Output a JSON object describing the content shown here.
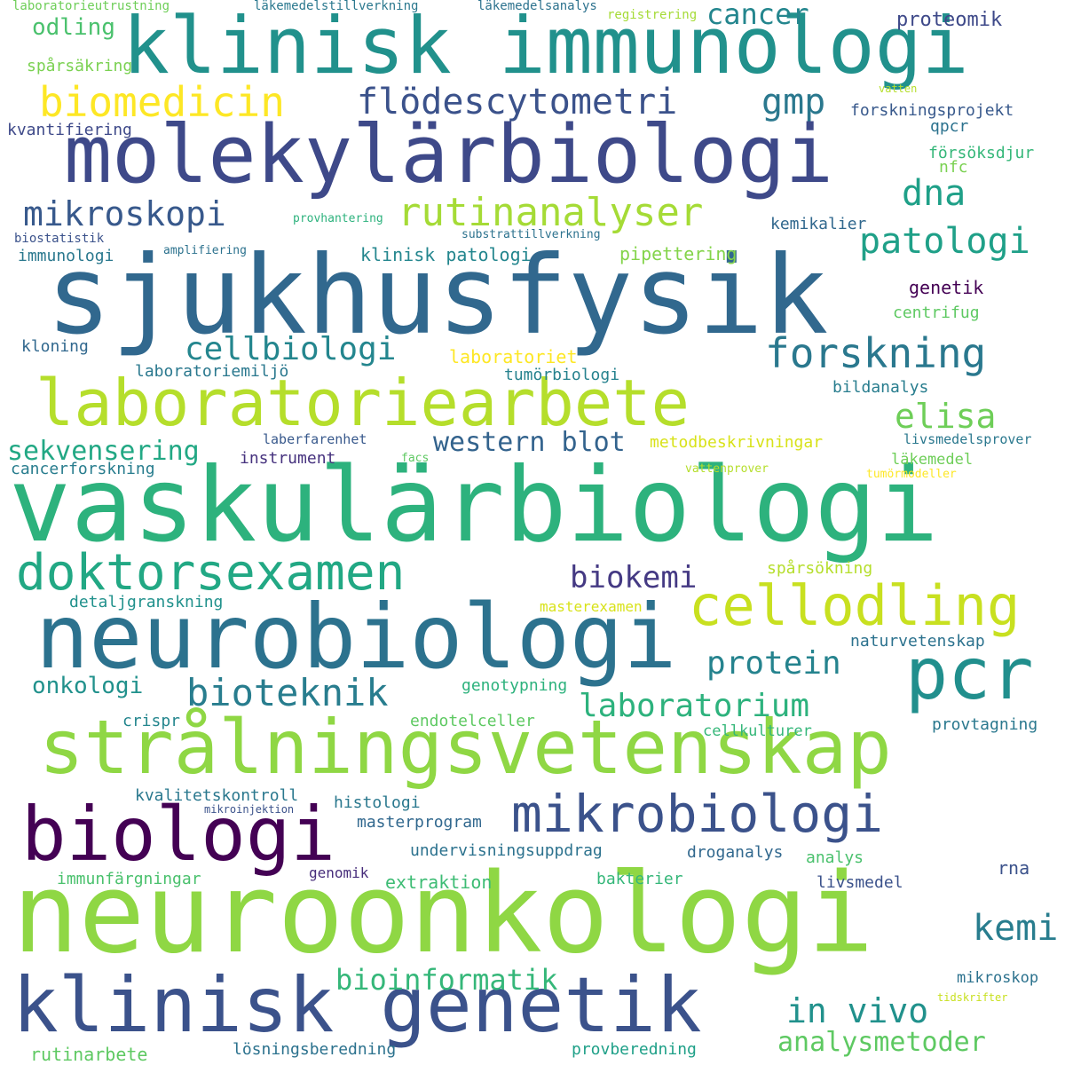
{
  "words": [
    {
      "text": "neuroonkologi",
      "color": "#8fd744"
    },
    {
      "text": "vaskulärbiologi",
      "color": "#2db27d"
    },
    {
      "text": "sjukhusfysik",
      "color": "#31688e"
    },
    {
      "text": "neurobiologi",
      "color": "#2c728e"
    },
    {
      "text": "molekylärbiologi",
      "color": "#3e4989"
    },
    {
      "text": "klinisk immunologi",
      "color": "#21918c"
    },
    {
      "text": "strålningsvetenskap",
      "color": "#8fd744"
    },
    {
      "text": "laboratoriearbete",
      "color": "#b5de2b"
    },
    {
      "text": "klinisk genetik",
      "color": "#3b528b"
    },
    {
      "text": "biologi",
      "color": "#440154"
    },
    {
      "text": "pcr",
      "color": "#218f8d"
    },
    {
      "text": "mikrobiologi",
      "color": "#3b528b"
    },
    {
      "text": "doktorsexamen",
      "color": "#22a884"
    },
    {
      "text": "cellodling",
      "color": "#c8e020"
    },
    {
      "text": "rutinanalyser",
      "color": "#a5db36"
    },
    {
      "text": "biomedicin",
      "color": "#fde725"
    },
    {
      "text": "flödescytometri",
      "color": "#3b528b"
    },
    {
      "text": "mikroskopi",
      "color": "#38598c"
    },
    {
      "text": "forskning",
      "color": "#2a788e"
    },
    {
      "text": "patologi",
      "color": "#1fa088"
    },
    {
      "text": "dna",
      "color": "#1fa088"
    },
    {
      "text": "gmp",
      "color": "#2a788e"
    },
    {
      "text": "cancer",
      "color": "#24868e"
    },
    {
      "text": "cellbiologi",
      "color": "#24868e"
    },
    {
      "text": "elisa",
      "color": "#6ece58"
    },
    {
      "text": "bioteknik",
      "color": "#287d8e"
    },
    {
      "text": "laboratorium",
      "color": "#2db27d"
    },
    {
      "text": "protein",
      "color": "#25838e"
    },
    {
      "text": "biokemi",
      "color": "#443983"
    },
    {
      "text": "western blot",
      "color": "#33638d"
    },
    {
      "text": "sekvensering",
      "color": "#22a884"
    },
    {
      "text": "in vivo",
      "color": "#21918c"
    },
    {
      "text": "analysmetoder",
      "color": "#5ec962"
    },
    {
      "text": "bioinformatik",
      "color": "#35b779"
    },
    {
      "text": "kemi",
      "color": "#287d8e"
    },
    {
      "text": "onkologi",
      "color": "#21918c"
    },
    {
      "text": "proteomik",
      "color": "#3e4989"
    },
    {
      "text": "odling",
      "color": "#4ac16d"
    },
    {
      "text": "laboratorieutrustning",
      "color": "#6ece58"
    },
    {
      "text": "läkemedelstillverkning",
      "color": "#2a788e"
    },
    {
      "text": "läkemedelsanalys",
      "color": "#2c728e"
    },
    {
      "text": "registrering",
      "color": "#a5db36"
    },
    {
      "text": "spårsäkring",
      "color": "#7ad151"
    },
    {
      "text": "vatten",
      "color": "#b5de2b"
    },
    {
      "text": "forskningsprojekt",
      "color": "#38598c"
    },
    {
      "text": "kvantifiering",
      "color": "#3e4989"
    },
    {
      "text": "qpcr",
      "color": "#2c728e"
    },
    {
      "text": "försöksdjur",
      "color": "#35b779"
    },
    {
      "text": "nfc",
      "color": "#7ad151"
    },
    {
      "text": "provhantering",
      "color": "#2db27d"
    },
    {
      "text": "kemikalier",
      "color": "#31688e"
    },
    {
      "text": "biostatistik",
      "color": "#3b528b"
    },
    {
      "text": "substrattillverkning",
      "color": "#2c728e"
    },
    {
      "text": "amplifiering",
      "color": "#2c728e"
    },
    {
      "text": "immunologi",
      "color": "#2a788e"
    },
    {
      "text": "klinisk patologi",
      "color": "#24868e"
    },
    {
      "text": "pipettering",
      "color": "#84d44b"
    },
    {
      "text": "genetik",
      "color": "#440154"
    },
    {
      "text": "centrifug",
      "color": "#5ec962"
    },
    {
      "text": "kloning",
      "color": "#31688e"
    },
    {
      "text": "laboratoriet",
      "color": "#fde725"
    },
    {
      "text": "laboratoriemiljö",
      "color": "#2a788e"
    },
    {
      "text": "tumörbiologi",
      "color": "#26828e"
    },
    {
      "text": "bildanalys",
      "color": "#287d8e"
    },
    {
      "text": "laberfarenhet",
      "color": "#38598c"
    },
    {
      "text": "metodbeskrivningar",
      "color": "#d8e219"
    },
    {
      "text": "livsmedelsprover",
      "color": "#2a788e"
    },
    {
      "text": "instrument",
      "color": "#46327e"
    },
    {
      "text": "facs",
      "color": "#5ec962"
    },
    {
      "text": "läkemedel",
      "color": "#6ece58"
    },
    {
      "text": "cancerforskning",
      "color": "#287d8e"
    },
    {
      "text": "vattenprover",
      "color": "#b5de2b"
    },
    {
      "text": "tumörmodeller",
      "color": "#fde725"
    },
    {
      "text": "spårsökning",
      "color": "#b5de2b"
    },
    {
      "text": "detaljgranskning",
      "color": "#21918c"
    },
    {
      "text": "masterexamen",
      "color": "#d8e219"
    },
    {
      "text": "naturvetenskap",
      "color": "#2c728e"
    },
    {
      "text": "genotypning",
      "color": "#2db27d"
    },
    {
      "text": "crispr",
      "color": "#24868e"
    },
    {
      "text": "endotelceller",
      "color": "#5ec962"
    },
    {
      "text": "cellkulturer",
      "color": "#35b779"
    },
    {
      "text": "provtagning",
      "color": "#2a788e"
    },
    {
      "text": "kvalitetskontroll",
      "color": "#2a788e"
    },
    {
      "text": "mikroinjektion",
      "color": "#3b528b"
    },
    {
      "text": "histologi",
      "color": "#2a788e"
    },
    {
      "text": "masterprogram",
      "color": "#31688e"
    },
    {
      "text": "undervisningsuppdrag",
      "color": "#2c728e"
    },
    {
      "text": "droganalys",
      "color": "#31688e"
    },
    {
      "text": "analys",
      "color": "#4ac16d"
    },
    {
      "text": "rna",
      "color": "#3b528b"
    },
    {
      "text": "immunfärgningar",
      "color": "#4ac16d"
    },
    {
      "text": "genomik",
      "color": "#472d7b"
    },
    {
      "text": "extraktion",
      "color": "#3dbc74"
    },
    {
      "text": "bakterier",
      "color": "#35b779"
    },
    {
      "text": "livsmedel",
      "color": "#3b528b"
    },
    {
      "text": "mikroskop",
      "color": "#2c728e"
    },
    {
      "text": "tidskrifter",
      "color": "#c8e020"
    },
    {
      "text": "rutinarbete",
      "color": "#5ec962"
    },
    {
      "text": "lösningsberedning",
      "color": "#2c728e"
    },
    {
      "text": "provberedning",
      "color": "#1fa088"
    }
  ]
}
